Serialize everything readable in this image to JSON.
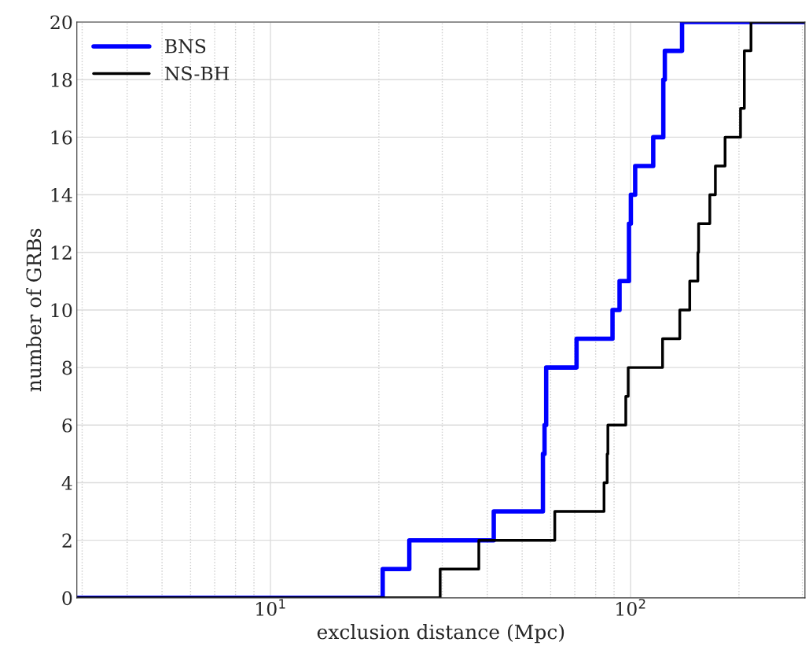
{
  "chart_data": {
    "type": "step",
    "xlabel": "exclusion distance (Mpc)",
    "ylabel": "number of GRBs",
    "log": "x",
    "xlim": [
      2.9,
      305
    ],
    "xticks": [
      {
        "value": 10,
        "label": "10$^{1}$"
      },
      {
        "value": 100,
        "label": "10$^{2}$"
      }
    ],
    "ylim": [
      0,
      20
    ],
    "yticks": [
      0,
      2,
      4,
      6,
      8,
      10,
      12,
      14,
      16,
      18,
      20
    ],
    "grid": true,
    "legend": "top left",
    "series": [
      {
        "name": "BNS",
        "color": "#0000ff",
        "x": [
          2.9,
          20.5,
          24.3,
          41.7,
          57.1,
          57.7,
          58.3,
          70.8,
          89.1,
          93.2,
          99.0,
          100.2,
          103,
          115.6,
          123.3,
          124.5,
          139,
          305
        ],
        "values": [
          0,
          1,
          2,
          3,
          5,
          6,
          8,
          9,
          10,
          11,
          13,
          14,
          15,
          16,
          18,
          19,
          20,
          20
        ]
      },
      {
        "name": "NS-BH",
        "color": "#000000",
        "x": [
          2.9,
          29.6,
          37.9,
          61.6,
          84.4,
          86.1,
          86.5,
          97.0,
          98.5,
          122.7,
          137,
          146,
          153.8,
          154.5,
          166,
          172,
          183,
          202,
          207,
          216,
          305
        ],
        "values": [
          0,
          1,
          2,
          3,
          4,
          5,
          6,
          7,
          8,
          9,
          10,
          11,
          12,
          13,
          14,
          15,
          16,
          17,
          19,
          20,
          20
        ]
      }
    ]
  }
}
